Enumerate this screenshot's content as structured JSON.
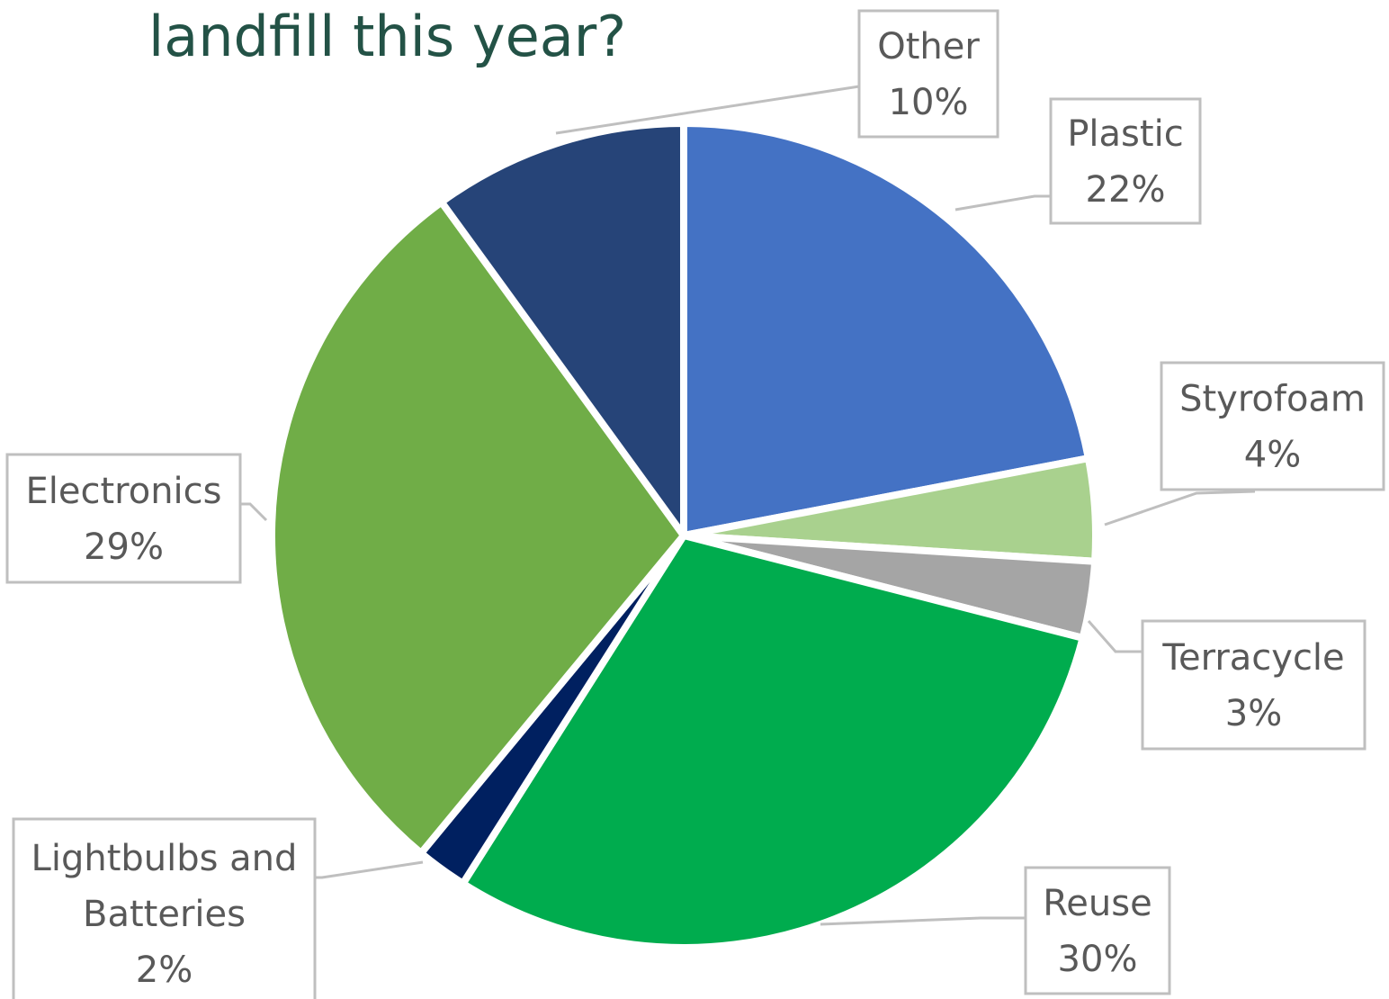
{
  "title": "landfill this year?",
  "chart_data": {
    "type": "pie",
    "title": "landfill this year?",
    "slices": [
      {
        "label_lines": [
          "Plastic"
        ],
        "value": 22,
        "value_label": "22%",
        "color": "#4472C4"
      },
      {
        "label_lines": [
          "Styrofoam"
        ],
        "value": 4,
        "value_label": "4%",
        "color": "#A9D18E"
      },
      {
        "label_lines": [
          "Terracycle"
        ],
        "value": 3,
        "value_label": "3%",
        "color": "#A5A5A5"
      },
      {
        "label_lines": [
          "Reuse"
        ],
        "value": 30,
        "value_label": "30%",
        "color": "#00AC4E"
      },
      {
        "label_lines": [
          "Lightbulbs and",
          "Batteries"
        ],
        "value": 2,
        "value_label": "2%",
        "color": "#002060"
      },
      {
        "label_lines": [
          "Electronics"
        ],
        "value": 29,
        "value_label": "29%",
        "color": "#70AD47"
      },
      {
        "label_lines": [
          "Other"
        ],
        "value": 10,
        "value_label": "10%",
        "color": "#264478"
      }
    ],
    "legend": "none",
    "data_labels": "callouts"
  }
}
